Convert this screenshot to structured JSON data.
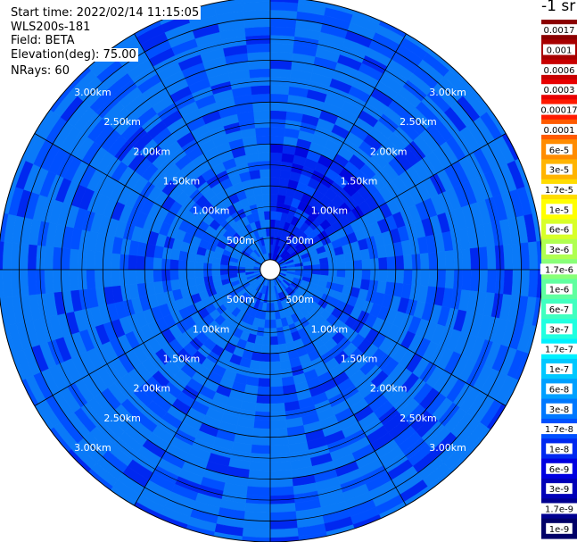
{
  "info": {
    "start_time": "Start time: 2022/02/14 11:15:05",
    "instrument": "WLS200s-181",
    "field": "Field: BETA",
    "elevation": "Elevation(deg): 75.00",
    "nrays": "NRays: 60"
  },
  "colorbar": {
    "unit_label": "-1 sr",
    "ticks": [
      {
        "label": "0.0017",
        "color": "#8b0000",
        "text_color": "#000000"
      },
      {
        "label": "0.001",
        "color": "#a80000",
        "text_color": "#000000"
      },
      {
        "label": "0.0006",
        "color": "#c80000",
        "text_color": "#000000"
      },
      {
        "label": "0.0003",
        "color": "#e80000",
        "text_color": "#000000"
      },
      {
        "label": "0.00017",
        "color": "#ff1a00",
        "text_color": "#000000"
      },
      {
        "label": "0.0001",
        "color": "#ff5a00",
        "text_color": "#000000"
      },
      {
        "label": "6e-5",
        "color": "#ff8c00",
        "text_color": "#000000"
      },
      {
        "label": "3e-5",
        "color": "#ffb400",
        "text_color": "#000000"
      },
      {
        "label": "1.7e-5",
        "color": "#ffdc00",
        "text_color": "#000000"
      },
      {
        "label": "1e-5",
        "color": "#ffff00",
        "text_color": "#000000"
      },
      {
        "label": "6e-6",
        "color": "#d8ff28",
        "text_color": "#000000"
      },
      {
        "label": "3e-6",
        "color": "#b0ff50",
        "text_color": "#000000"
      },
      {
        "label": "1.7e-6",
        "color": "#88ff78",
        "text_color": "#000000"
      },
      {
        "label": "1e-6",
        "color": "#60ffa0",
        "text_color": "#000000"
      },
      {
        "label": "6e-7",
        "color": "#40ffc0",
        "text_color": "#000000"
      },
      {
        "label": "3e-7",
        "color": "#20ffe0",
        "text_color": "#000000"
      },
      {
        "label": "1.7e-7",
        "color": "#00f0ff",
        "text_color": "#000000"
      },
      {
        "label": "1e-7",
        "color": "#00c8ff",
        "text_color": "#000000"
      },
      {
        "label": "6e-8",
        "color": "#00a0ff",
        "text_color": "#000000"
      },
      {
        "label": "3e-8",
        "color": "#0078ff",
        "text_color": "#000000"
      },
      {
        "label": "1.7e-8",
        "color": "#0050ff",
        "text_color": "#000000"
      },
      {
        "label": "1e-8",
        "color": "#0028f0",
        "text_color": "#000000"
      },
      {
        "label": "6e-9",
        "color": "#0000e0",
        "text_color": "#000000"
      },
      {
        "label": "3e-9",
        "color": "#0000b8",
        "text_color": "#000000"
      },
      {
        "label": "1.7e-9",
        "color": "#000090",
        "text_color": "#000000"
      },
      {
        "label": "1e-9",
        "color": "#000068",
        "text_color": "#000000"
      }
    ]
  },
  "chart_data": {
    "type": "heatmap",
    "projection": "polar (PPI scan)",
    "field": "BETA",
    "elevation_deg": 75.0,
    "n_rays": 60,
    "range_rings": [
      {
        "range_m": 500,
        "label": "500m"
      },
      {
        "range_m": 1000,
        "label": "1.00km"
      },
      {
        "range_m": 1500,
        "label": "1.50km"
      },
      {
        "range_m": 2000,
        "label": "2.00km"
      },
      {
        "range_m": 2500,
        "label": "2.50km"
      },
      {
        "range_m": 3000,
        "label": "3.00km"
      }
    ],
    "max_range_m": 3250,
    "min_range_m": 120,
    "spoke_azimuths_deg": [
      0,
      30,
      60,
      90,
      120,
      150,
      180,
      210,
      240,
      270,
      300,
      330
    ],
    "ring_label_azimuths_deg": [
      45,
      135,
      225,
      315
    ],
    "value_scale": "log",
    "value_range": [
      1e-09,
      0.0017
    ],
    "colors": {
      "typical": "#0a7af8",
      "low": "#0050ff",
      "very_low": "#0028f0",
      "minimum": "#0008e0"
    },
    "background_value": 3e-08,
    "notable_region": {
      "azimuth_deg": [
        0,
        60
      ],
      "range_m": [
        120,
        1500
      ],
      "value_range": [
        1e-09,
        1e-08
      ]
    }
  }
}
